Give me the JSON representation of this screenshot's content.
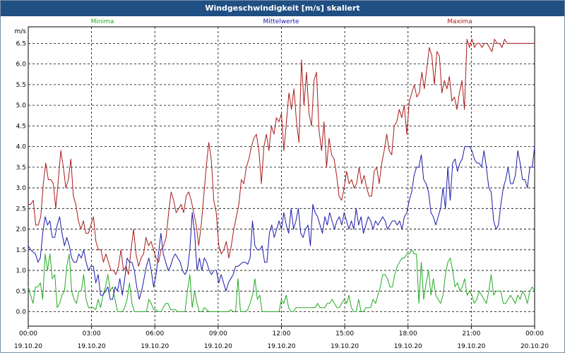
{
  "window": {
    "title": "Windgeschwindigkeit [m/s] skaliert"
  },
  "chart_data": {
    "type": "line",
    "title": "Windgeschwindigkeit [m/s] skaliert",
    "ylabel": "m/s",
    "ylim": [
      -0.35,
      6.9
    ],
    "xlim": [
      0,
      24
    ],
    "grid": true,
    "legend_placement": "top",
    "y_ticks": [
      "0.0",
      "0.5",
      "1.0",
      "1.5",
      "2.0",
      "2.5",
      "3.0",
      "3.5",
      "4.0",
      "4.5",
      "5.0",
      "5.5",
      "6.0",
      "6.5"
    ],
    "x_ticks": [
      {
        "time": "00:00",
        "date": "19.10.20"
      },
      {
        "time": "03:00",
        "date": "19.10.20"
      },
      {
        "time": "06:00",
        "date": "19.10.20"
      },
      {
        "time": "09:00",
        "date": "19.10.20"
      },
      {
        "time": "12:00",
        "date": "19.10.20"
      },
      {
        "time": "15:00",
        "date": "19.10.20"
      },
      {
        "time": "18:00",
        "date": "19.10.20"
      },
      {
        "time": "21:00",
        "date": "19.10.20"
      },
      {
        "time": "00:00",
        "date": "20.10.20"
      }
    ],
    "series": [
      {
        "name": "Minima",
        "color": "#22aa22",
        "values": [
          0.6,
          0.4,
          0.2,
          0.6,
          0.6,
          0.7,
          0.3,
          1.4,
          1.0,
          1.4,
          0.8,
          0.9,
          0.1,
          0.2,
          0.4,
          0.5,
          1.1,
          1.4,
          0.5,
          0.3,
          0.2,
          0.5,
          0.5,
          0.9,
          0.3,
          0.1,
          0.1,
          0.1,
          0.05,
          0.3,
          0.1,
          0.4,
          0.6,
          0.9,
          0.5,
          0.6,
          0.3,
          0.0,
          0.0,
          0.0,
          0.1,
          0.3,
          0.7,
          0.2,
          0.0,
          0.0,
          0.0,
          0.0,
          0.0,
          0.0,
          0.3,
          0.2,
          0.05,
          0.05,
          0.0,
          0.0,
          0.1,
          0.2,
          0.2,
          0.05,
          0.05,
          0.05,
          0.0,
          0.0,
          0.0,
          0.0,
          0.5,
          0.9,
          0.1,
          0.5,
          0.2,
          0.0,
          0.0,
          0.1,
          0.05,
          0.0,
          0.0,
          0.0,
          0.0,
          0.0,
          0.0,
          0.0,
          0.0,
          0.0,
          0.05,
          0.0,
          0.0,
          0.8,
          0.0,
          0.0,
          0.0,
          0.05,
          0.2,
          0.4,
          0.8,
          0.3,
          0.4,
          0.0,
          0.0,
          0.0,
          0.0,
          0.0,
          0.0,
          0.0,
          0.0,
          0.3,
          0.2,
          0.4,
          0.1,
          0.0,
          0.0,
          0.1,
          0.1,
          0.1,
          0.1,
          0.1,
          0.1,
          0.1,
          0.1,
          0.1,
          0.2,
          0.1,
          0.1,
          0.1,
          0.2,
          0.2,
          0.3,
          0.2,
          0.1,
          0.1,
          0.2,
          0.3,
          0.2,
          0.4,
          0.1,
          0.0,
          0.0,
          0.3,
          0.0,
          0.0,
          0.1,
          0.1,
          0.1,
          0.3,
          0.2,
          0.4,
          0.6,
          0.9,
          0.9,
          0.8,
          0.6,
          0.6,
          0.9,
          1.1,
          1.2,
          1.3,
          1.3,
          1.4,
          1.4,
          1.5,
          1.4,
          1.4,
          0.2,
          1.2,
          0.3,
          0.7,
          1.0,
          0.4,
          0.8,
          0.4,
          0.3,
          0.2,
          0.4,
          0.9,
          1.2,
          1.3,
          1.0,
          0.6,
          0.7,
          0.5,
          0.6,
          0.8,
          0.4,
          0.5,
          0.4,
          0.2,
          0.3,
          0.5,
          0.4,
          0.3,
          0.2,
          0.5,
          0.9,
          0.4,
          0.5,
          0.5,
          0.5,
          0.2,
          0.2,
          0.3,
          0.4,
          0.3,
          0.2,
          0.4,
          0.3,
          0.5,
          0.4,
          0.2,
          0.5,
          0.6,
          0.5
        ]
      },
      {
        "name": "Mittelwerte",
        "color": "#1a1aaa",
        "values": [
          1.6,
          1.5,
          1.45,
          1.4,
          1.2,
          1.3,
          1.9,
          2.3,
          2.1,
          2.2,
          1.8,
          1.8,
          2.1,
          2.3,
          1.9,
          1.6,
          1.8,
          1.6,
          1.3,
          1.2,
          1.2,
          1.4,
          1.3,
          1.5,
          1.2,
          1.0,
          1.1,
          1.1,
          0.7,
          0.9,
          0.4,
          0.4,
          0.5,
          0.6,
          0.3,
          0.3,
          0.6,
          0.5,
          0.8,
          0.4,
          0.8,
          1.3,
          1.2,
          1.2,
          1.0,
          0.6,
          0.3,
          0.5,
          0.8,
          1.1,
          1.3,
          1.0,
          0.6,
          0.9,
          1.4,
          1.9,
          1.4,
          1.2,
          1.0,
          1.1,
          1.3,
          1.4,
          1.3,
          1.2,
          1.0,
          0.9,
          1.0,
          1.5,
          2.4,
          1.9,
          1.0,
          1.3,
          1.0,
          1.3,
          1.2,
          1.0,
          0.9,
          1.0,
          1.0,
          0.7,
          0.9,
          0.7,
          0.5,
          0.7,
          0.8,
          0.9,
          1.1,
          1.1,
          1.15,
          1.2,
          1.2,
          1.15,
          1.3,
          2.2,
          1.6,
          1.5,
          1.5,
          1.6,
          1.2,
          1.2,
          1.9,
          2.1,
          1.8,
          2.0,
          2.2,
          2.0,
          2.4,
          2.1,
          1.9,
          2.5,
          2.0,
          2.2,
          2.5,
          1.9,
          1.8,
          2.0,
          2.1,
          1.6,
          2.6,
          2.4,
          2.3,
          2.1,
          1.9,
          2.3,
          2.1,
          2.4,
          2.2,
          2.0,
          2.2,
          2.3,
          2.1,
          2.4,
          2.2,
          2.0,
          2.2,
          2.0,
          2.5,
          2.1,
          2.3,
          1.9,
          2.1,
          2.3,
          2.2,
          2.0,
          2.2,
          2.1,
          2.2,
          2.3,
          2.2,
          2.0,
          2.1,
          2.2,
          2.2,
          2.1,
          2.2,
          2.0,
          2.3,
          2.4,
          2.7,
          2.9,
          3.3,
          3.5,
          3.5,
          3.8,
          3.2,
          3.1,
          2.9,
          2.4,
          2.3,
          2.1,
          2.3,
          2.5,
          3.0,
          2.5,
          3.5,
          2.7,
          3.6,
          3.7,
          3.4,
          3.6,
          3.7,
          4.0,
          4.0,
          4.0,
          3.9,
          3.7,
          3.6,
          3.6,
          3.5,
          3.9,
          3.5,
          3.0,
          2.9,
          2.2,
          2.0,
          2.1,
          2.6,
          3.0,
          3.2,
          3.5,
          3.1,
          3.1,
          3.3,
          3.9,
          3.6,
          3.2,
          3.2,
          3.0,
          3.5,
          3.5,
          4.0
        ]
      },
      {
        "name": "Maxima",
        "color": "#aa1a1a",
        "values": [
          2.6,
          2.6,
          2.7,
          2.1,
          2.1,
          2.3,
          3.1,
          3.6,
          3.2,
          3.2,
          3.1,
          2.5,
          3.2,
          3.9,
          3.5,
          3.0,
          3.2,
          3.7,
          2.8,
          2.6,
          2.2,
          2.0,
          2.2,
          1.9,
          1.9,
          2.1,
          2.3,
          1.7,
          1.5,
          1.5,
          1.2,
          1.4,
          1.2,
          1.0,
          1.0,
          0.9,
          1.1,
          1.5,
          1.0,
          1.1,
          0.9,
          1.5,
          2.0,
          1.4,
          1.1,
          1.3,
          1.4,
          1.8,
          1.6,
          1.7,
          1.5,
          1.3,
          1.2,
          1.5,
          1.6,
          1.8,
          2.4,
          2.9,
          2.7,
          2.4,
          2.5,
          2.6,
          2.4,
          2.8,
          2.9,
          2.7,
          2.4,
          2.1,
          1.6,
          2.1,
          2.8,
          3.5,
          4.1,
          3.7,
          2.7,
          2.4,
          1.6,
          1.4,
          1.5,
          1.7,
          1.3,
          1.6,
          2.0,
          2.3,
          2.6,
          3.2,
          3.1,
          3.5,
          3.7,
          4.0,
          4.2,
          4.3,
          3.9,
          3.1,
          4.0,
          4.3,
          3.9,
          4.5,
          4.3,
          4.7,
          4.6,
          4.8,
          3.9,
          4.6,
          5.3,
          4.9,
          5.4,
          4.6,
          4.1,
          6.1,
          5.0,
          5.8,
          4.8,
          4.5,
          5.6,
          5.8,
          4.4,
          3.9,
          4.6,
          3.5,
          4.2,
          3.8,
          3.7,
          3.3,
          2.8,
          2.7,
          3.0,
          3.4,
          3.1,
          3.2,
          3.0,
          3.1,
          3.5,
          3.1,
          3.3,
          3.0,
          2.8,
          2.8,
          3.4,
          3.5,
          3.1,
          3.6,
          3.9,
          4.3,
          3.9,
          3.8,
          4.5,
          4.6,
          4.9,
          4.7,
          5.0,
          4.3,
          5.1,
          5.3,
          5.5,
          5.2,
          5.3,
          5.8,
          5.4,
          5.9,
          6.4,
          6.2,
          5.5,
          6.3,
          6.2,
          5.3,
          5.6,
          5.4,
          5.7,
          5.1,
          5.2,
          4.9,
          5.3,
          5.6,
          4.9,
          6.6,
          6.4,
          6.6,
          6.4,
          6.5,
          6.5,
          6.4,
          6.5,
          6.5,
          6.4,
          6.3,
          6.6,
          6.5,
          6.5,
          6.4,
          6.6,
          6.5,
          6.5,
          6.5,
          6.5,
          6.5,
          6.5,
          6.5,
          6.5,
          6.5,
          6.5,
          6.5,
          6.5
        ]
      }
    ]
  }
}
